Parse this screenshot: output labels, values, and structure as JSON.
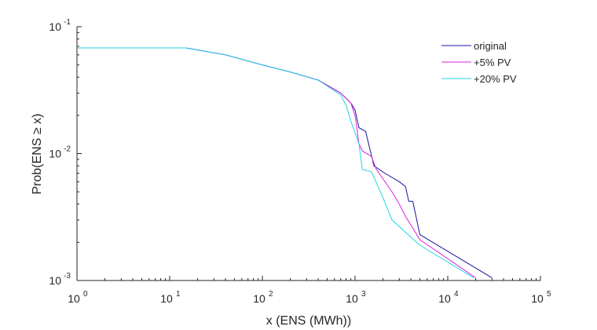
{
  "chart_data": {
    "type": "line",
    "xlabel": "x (ENS (MWh))",
    "ylabel": "Prob(ENS ≥ x)",
    "xscale": "log",
    "yscale": "log",
    "xlim": [
      1,
      100000
    ],
    "ylim": [
      0.001,
      0.1
    ],
    "x_ticks": [
      {
        "base": "10",
        "exp": "0"
      },
      {
        "base": "10",
        "exp": "1"
      },
      {
        "base": "10",
        "exp": "2"
      },
      {
        "base": "10",
        "exp": "3"
      },
      {
        "base": "10",
        "exp": "4"
      },
      {
        "base": "10",
        "exp": "5"
      }
    ],
    "y_ticks": [
      {
        "base": "10",
        "exp": "-3"
      },
      {
        "base": "10",
        "exp": "-2"
      },
      {
        "base": "10",
        "exp": "-1"
      }
    ],
    "grid": false,
    "box": "left-bottom",
    "legend": {
      "position": "top-right",
      "box": false
    },
    "series": [
      {
        "name": "original",
        "color": "#1414a0",
        "points": [
          [
            1,
            0.068
          ],
          [
            15,
            0.068
          ],
          [
            40,
            0.06
          ],
          [
            100,
            0.05
          ],
          [
            200,
            0.044
          ],
          [
            400,
            0.038
          ],
          [
            700,
            0.03
          ],
          [
            900,
            0.025
          ],
          [
            1000,
            0.022
          ],
          [
            1100,
            0.016
          ],
          [
            1300,
            0.015
          ],
          [
            1400,
            0.012
          ],
          [
            1600,
            0.008
          ],
          [
            2100,
            0.007
          ],
          [
            3000,
            0.006
          ],
          [
            3500,
            0.0055
          ],
          [
            3800,
            0.0042
          ],
          [
            4200,
            0.0042
          ],
          [
            5000,
            0.0023
          ],
          [
            30000,
            0.00105
          ]
        ]
      },
      {
        "name": "+5% PV",
        "color": "#dd22dd",
        "points": [
          [
            1,
            0.068
          ],
          [
            15,
            0.068
          ],
          [
            40,
            0.06
          ],
          [
            100,
            0.05
          ],
          [
            200,
            0.044
          ],
          [
            400,
            0.038
          ],
          [
            700,
            0.03
          ],
          [
            900,
            0.025
          ],
          [
            1000,
            0.02
          ],
          [
            1100,
            0.012
          ],
          [
            1200,
            0.0105
          ],
          [
            1500,
            0.0095
          ],
          [
            1700,
            0.0075
          ],
          [
            2500,
            0.005
          ],
          [
            3000,
            0.004
          ],
          [
            3500,
            0.0032
          ],
          [
            5000,
            0.0021
          ],
          [
            20000,
            0.00105
          ]
        ]
      },
      {
        "name": "+20% PV",
        "color": "#22d6e8",
        "points": [
          [
            1,
            0.068
          ],
          [
            15,
            0.068
          ],
          [
            40,
            0.06
          ],
          [
            100,
            0.05
          ],
          [
            200,
            0.044
          ],
          [
            400,
            0.038
          ],
          [
            700,
            0.029
          ],
          [
            800,
            0.024
          ],
          [
            900,
            0.018
          ],
          [
            1100,
            0.012
          ],
          [
            1200,
            0.0075
          ],
          [
            1500,
            0.0072
          ],
          [
            2000,
            0.0045
          ],
          [
            2500,
            0.003
          ],
          [
            4000,
            0.0022
          ],
          [
            5000,
            0.0019
          ],
          [
            19000,
            0.00105
          ]
        ]
      }
    ]
  }
}
